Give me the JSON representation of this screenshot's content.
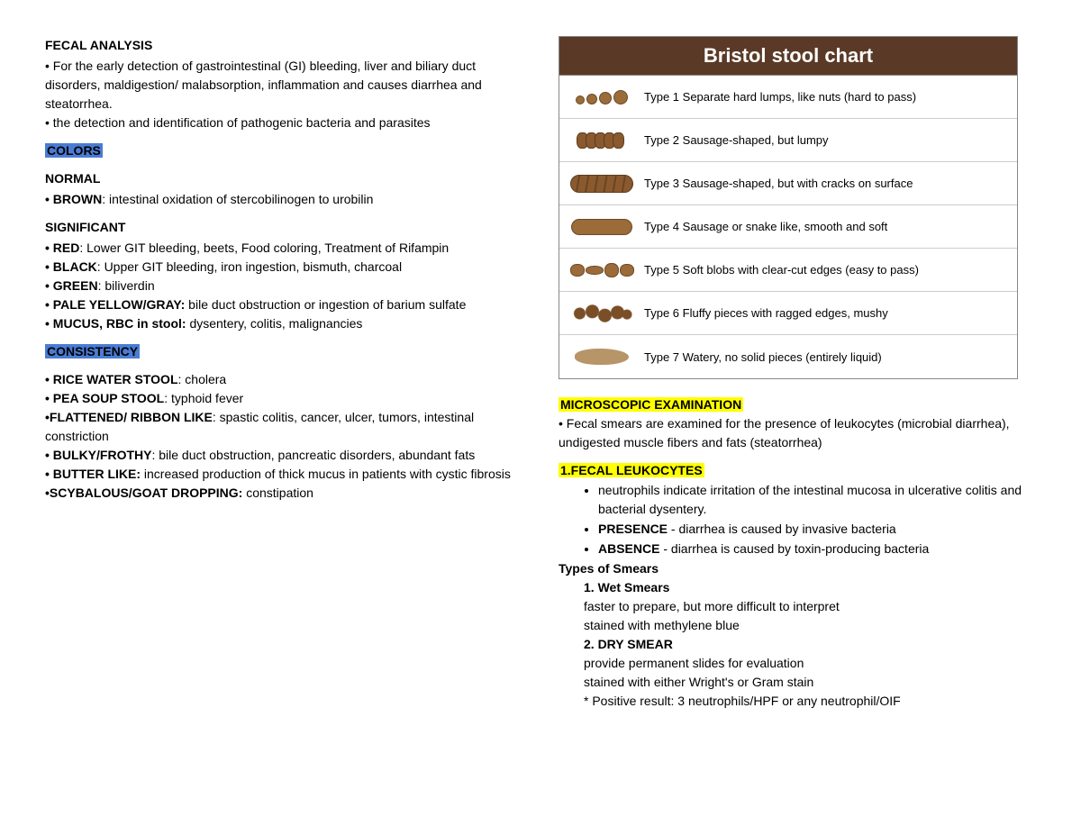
{
  "left": {
    "title": "FECAL ANALYSIS",
    "intro1": "• For the early detection of gastrointestinal (GI) bleeding, liver and biliary duct disorders, maldigestion/ malabsorption, inflammation and causes diarrhea and steatorrhea.",
    "intro2": "• the detection and identification of pathogenic bacteria and parasites",
    "colors_heading": "COLORS",
    "normal_heading": "NORMAL",
    "normal_brown_label": "• BROWN",
    "normal_brown_text": ": intestinal oxidation of stercobilinogen to urobilin",
    "significant_heading": "SIGNIFICANT",
    "red_label": "• RED",
    "red_text": ": Lower GIT bleeding, beets, Food coloring, Treatment of Rifampin",
    "black_label": "• BLACK",
    "black_text": ": Upper GIT bleeding, iron ingestion, bismuth, charcoal",
    "green_label": "• GREEN",
    "green_text": ": biliverdin",
    "pale_label": "• PALE YELLOW/GRAY:",
    "pale_text": " bile duct obstruction or ingestion of barium sulfate",
    "mucus_label": "• MUCUS, RBC in stool:",
    "mucus_text": " dysentery, colitis, malignancies",
    "consistency_heading": "CONSISTENCY",
    "rice_label": "• RICE WATER STOOL",
    "rice_text": ": cholera",
    "pea_label": "• PEA SOUP STOOL",
    "pea_text": ": typhoid fever",
    "ribbon_label": "•FLATTENED/ RIBBON LIKE",
    "ribbon_text": ": spastic colitis, cancer, ulcer, tumors, intestinal constriction",
    "bulky_label": "• BULKY/FROTHY",
    "bulky_text": ": bile duct obstruction, pancreatic disorders, abundant fats",
    "butter_label": "• BUTTER LIKE:",
    "butter_text": " increased production of thick mucus in patients with cystic fibrosis",
    "scyb_label": "•SCYBALOUS/GOAT DROPPING:",
    "scyb_text": " constipation"
  },
  "bristol": {
    "title": "Bristol stool chart",
    "header_bg": "#5a3a26",
    "rows": [
      {
        "type": "Type 1",
        "desc": " Separate hard lumps, like nuts (hard to pass)"
      },
      {
        "type": "Type 2",
        "desc": " Sausage-shaped, but lumpy"
      },
      {
        "type": "Type 3",
        "desc": " Sausage-shaped, but with cracks on surface"
      },
      {
        "type": "Type 4",
        "desc": " Sausage or snake like, smooth and soft"
      },
      {
        "type": "Type 5",
        "desc": " Soft blobs with clear-cut edges (easy to pass)"
      },
      {
        "type": "Type 6",
        "desc": " Fluffy pieces with ragged edges, mushy"
      },
      {
        "type": "Type 7",
        "desc": " Watery, no solid pieces (entirely liquid)"
      }
    ]
  },
  "right": {
    "micro_heading": "MICROSCOPIC EXAMINATION",
    "micro_text": "• Fecal smears are examined for the presence of leukocytes (microbial diarrhea), undigested muscle fibers and fats (steatorrhea)",
    "leuk_heading": "1.FECAL LEUKOCYTES",
    "leuk_b1": "neutrophils indicate irritation of the intestinal mucosa in ulcerative colitis and bacterial dysentery.",
    "leuk_b2_label": "PRESENCE",
    "leuk_b2_text": " - diarrhea is caused by invasive bacteria",
    "leuk_b3_label": "ABSENCE",
    "leuk_b3_text": " - diarrhea is caused by toxin-producing bacteria",
    "smears_heading": "Types of Smears",
    "wet_heading": "1. Wet Smears",
    "wet_l1": "faster to prepare, but more difficult to interpret",
    "wet_l2": "stained with methylene blue",
    "dry_heading": "2. DRY SMEAR",
    "dry_l1": "provide permanent slides for evaluation",
    "dry_l2": "stained with either Wright's or Gram stain",
    "dry_l3": "* Positive result: 3 neutrophils/HPF or any neutrophil/OIF"
  }
}
